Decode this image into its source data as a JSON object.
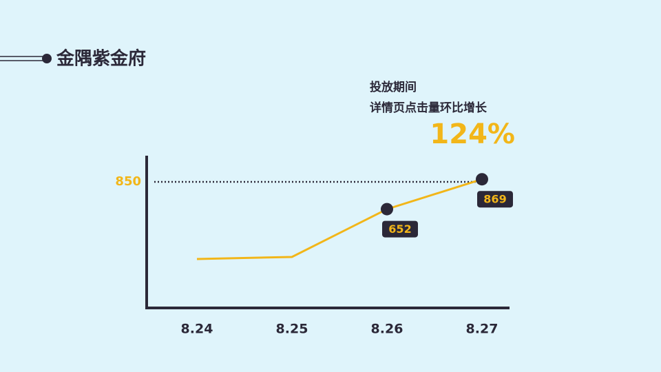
{
  "chart_data": {
    "type": "line",
    "title": "金隅紫金府",
    "annotation": [
      "投放期间",
      "详情页点击量环比增长"
    ],
    "growth": "124%",
    "categories": [
      "8.24",
      "8.25",
      "8.26",
      "8.27"
    ],
    "series": [
      {
        "name": "详情页点击量",
        "color": "#f2b619",
        "values": [
          290,
          305,
          652,
          869
        ],
        "value_labels": [
          null,
          null,
          "652",
          "869"
        ]
      }
    ],
    "ylim": [
      0,
      1000
    ],
    "yticks": [
      850
    ],
    "marker_color": "#2b2838"
  }
}
